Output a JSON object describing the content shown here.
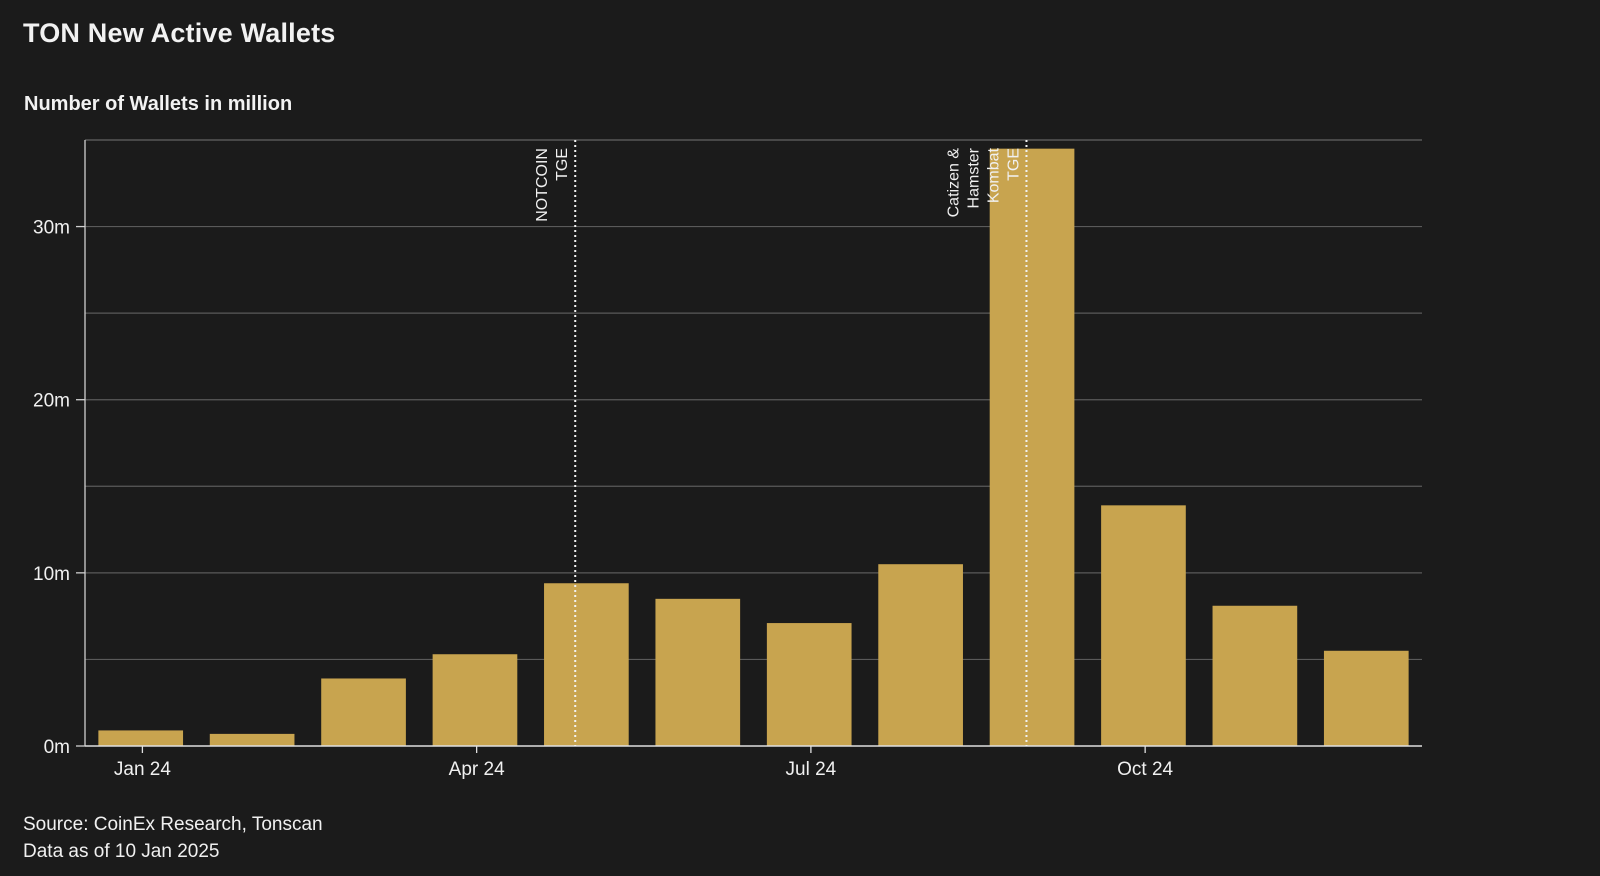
{
  "title": "TON New Active Wallets",
  "subtitle": "Number of Wallets in million",
  "footer": {
    "source": "Source: CoinEx Research, Tonscan",
    "as_of": "Data as of 10 Jan 2025"
  },
  "colors": {
    "background": "#1b1b1b",
    "bar": "#c8a44f",
    "grid": "#5a5a5a",
    "text": "#f0f0f0"
  },
  "chart_data": {
    "type": "bar",
    "title": "TON New Active Wallets",
    "ylabel": "Number of Wallets in million",
    "categories": [
      "Jan 24",
      "Feb 24",
      "Mar 24",
      "Apr 24",
      "May 24",
      "Jun 24",
      "Jul 24",
      "Aug 24",
      "Sep 24",
      "Oct 24",
      "Nov 24",
      "Dec 24"
    ],
    "values": [
      0.9,
      0.7,
      3.9,
      5.3,
      9.4,
      8.5,
      7.1,
      10.5,
      34.5,
      13.9,
      8.1,
      5.5
    ],
    "unit": "million",
    "ylim": [
      0,
      35
    ],
    "yticks": [
      {
        "value": 0,
        "label": "0m"
      },
      {
        "value": 10,
        "label": "10m"
      },
      {
        "value": 20,
        "label": "20m"
      },
      {
        "value": 30,
        "label": "30m"
      }
    ],
    "xtick_labels": [
      {
        "index": 0,
        "label": "Jan 24"
      },
      {
        "index": 3,
        "label": "Apr 24"
      },
      {
        "index": 6,
        "label": "Jul 24"
      },
      {
        "index": 9,
        "label": "Oct 24"
      }
    ],
    "grid": true,
    "annotations": [
      {
        "position_index": 4.4,
        "lines": [
          "NOTCOIN",
          "TGE"
        ]
      },
      {
        "position_index": 8.45,
        "lines": [
          "Catizen &",
          "Hamster",
          "Kombat",
          "TGE"
        ]
      }
    ]
  }
}
